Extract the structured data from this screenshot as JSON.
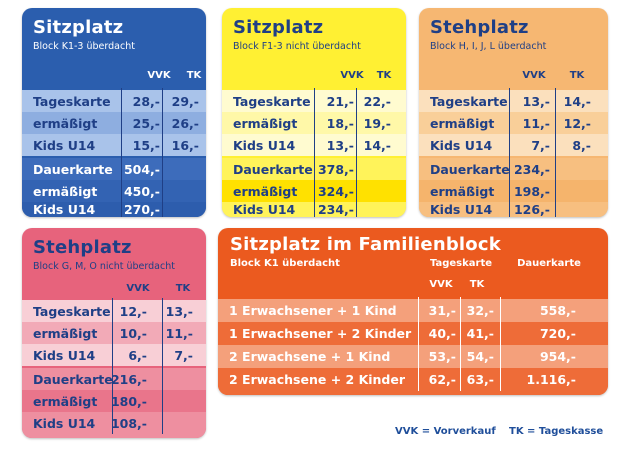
{
  "colors": {
    "blue": "#2a5cad",
    "yellow": "#fff033",
    "orange_light": "#f7b774",
    "pink": "#e8647d",
    "orange_red": "#ec5a1e",
    "text_blue": "#1f3f86"
  },
  "cards": {
    "k13": {
      "title": "Sitzplatz",
      "subtitle": "Block K1-3   überdacht",
      "vvk": "VVK",
      "tk": "TK",
      "rows": [
        {
          "label": "Tageskarte",
          "vvk": "28,-",
          "tk": "29,-"
        },
        {
          "label": "ermäßigt",
          "vvk": "25,-",
          "tk": "26,-"
        },
        {
          "label": "Kids U14",
          "vvk": "15,-",
          "tk": "16,-"
        },
        {
          "label": "Dauerkarte",
          "vvk": "504,-",
          "tk": ""
        },
        {
          "label": "ermäßigt",
          "vvk": "450,-",
          "tk": ""
        },
        {
          "label": "Kids U14",
          "vvk": "270,-",
          "tk": ""
        }
      ]
    },
    "f13": {
      "title": "Sitzplatz",
      "subtitle": "Block F1-3   nicht überdacht",
      "vvk": "VVK",
      "tk": "TK",
      "rows": [
        {
          "label": "Tageskarte",
          "vvk": "21,-",
          "tk": "22,-"
        },
        {
          "label": "ermäßigt",
          "vvk": "18,-",
          "tk": "19,-"
        },
        {
          "label": "Kids U14",
          "vvk": "13,-",
          "tk": "14,-"
        },
        {
          "label": "Dauerkarte",
          "vvk": "378,-",
          "tk": ""
        },
        {
          "label": "ermäßigt",
          "vvk": "324,-",
          "tk": ""
        },
        {
          "label": "Kids U14",
          "vvk": "234,-",
          "tk": ""
        }
      ]
    },
    "hijl": {
      "title": "Stehplatz",
      "subtitle": "Block H, I, J, L   überdacht",
      "vvk": "VVK",
      "tk": "TK",
      "rows": [
        {
          "label": "Tageskarte",
          "vvk": "13,-",
          "tk": "14,-"
        },
        {
          "label": "ermäßigt",
          "vvk": "11,-",
          "tk": "12,-"
        },
        {
          "label": "Kids U14",
          "vvk": "7,-",
          "tk": "8,-"
        },
        {
          "label": "Dauerkarte",
          "vvk": "234,-",
          "tk": ""
        },
        {
          "label": "ermäßigt",
          "vvk": "198,-",
          "tk": ""
        },
        {
          "label": "Kids U14",
          "vvk": "126,-",
          "tk": ""
        }
      ]
    },
    "gmo": {
      "title": "Stehplatz",
      "subtitle": "Block G, M, O   nicht überdacht",
      "vvk": "VVK",
      "tk": "TK",
      "rows": [
        {
          "label": "Tageskarte",
          "vvk": "12,-",
          "tk": "13,-"
        },
        {
          "label": "ermäßigt",
          "vvk": "10,-",
          "tk": "11,-"
        },
        {
          "label": "Kids U14",
          "vvk": "6,-",
          "tk": "7,-"
        },
        {
          "label": "Dauerkarte",
          "vvk": "216,-",
          "tk": ""
        },
        {
          "label": "ermäßigt",
          "vvk": "180,-",
          "tk": ""
        },
        {
          "label": "Kids U14",
          "vvk": "108,-",
          "tk": ""
        }
      ]
    },
    "family": {
      "title": "Sitzplatz im Familienblock",
      "subtitle": "Block K1 überdacht",
      "tageskarte": "Tageskarte",
      "dauerkarte": "Dauerkarte",
      "vvk": "VVK",
      "tk": "TK",
      "rows": [
        {
          "label": "1 Erwachsener + 1 Kind",
          "vvk": "31,-",
          "tk": "32,-",
          "dauer": "558,-"
        },
        {
          "label": "1 Erwachsener + 2 Kinder",
          "vvk": "40,-",
          "tk": "41,-",
          "dauer": "720,-"
        },
        {
          "label": "2 Erwachsene + 1 Kind",
          "vvk": "53,-",
          "tk": "54,-",
          "dauer": "954,-"
        },
        {
          "label": "2 Erwachsene + 2 Kinder",
          "vvk": "62,-",
          "tk": "63,-",
          "dauer": "1.116,-"
        }
      ]
    }
  },
  "legend": {
    "vvk": "VVK = Vorverkauf",
    "tk": "TK = Tageskasse"
  }
}
